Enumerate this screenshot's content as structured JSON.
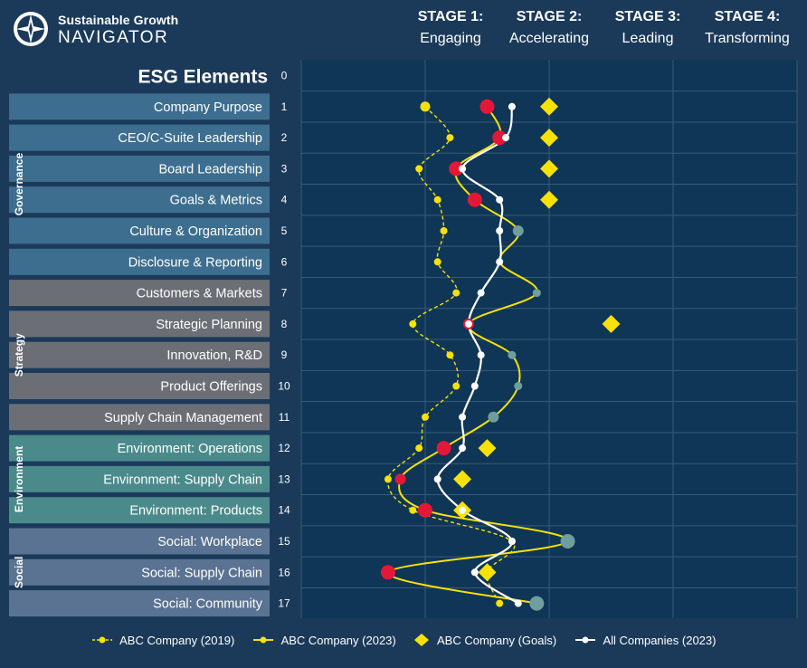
{
  "brand": {
    "top": "Sustainable Growth",
    "bottom": "NAVIGATOR"
  },
  "stages": [
    {
      "title": "STAGE 1:",
      "name": "Engaging"
    },
    {
      "title": "STAGE 2:",
      "name": "Accelerating"
    },
    {
      "title": "STAGE 3:",
      "name": "Leading"
    },
    {
      "title": "STAGE 4:",
      "name": "Transforming"
    }
  ],
  "colors": {
    "background": "#1b3a5a",
    "plot": "#0f3656",
    "grid": "#3a5a78",
    "governance": "#3d6e8f",
    "strategy": "#6b6f75",
    "environment": "#4b8a8b",
    "social": "#5b7392",
    "abc2019": "#f7e107",
    "abc2023": "#f7e107",
    "abc2023_marker": "#e31837",
    "goals": "#f7e107",
    "all": "#ffffff",
    "all_marker": "#6e9e9d"
  },
  "chart_data": {
    "type": "line",
    "title": "ESG Elements",
    "xlabel": "",
    "ylabel": "",
    "xlim": [
      0.5,
      4.5
    ],
    "ylim": [
      0,
      17
    ],
    "categories": [
      "Company Purpose",
      "CEO/C-Suite Leadership",
      "Board Leadership",
      "Goals & Metrics",
      "Culture & Organization",
      "Disclosure & Reporting",
      "Customers & Markets",
      "Strategic Planning",
      "Innovation, R&D",
      "Product Offerings",
      "Supply Chain Management",
      "Environment: Operations",
      "Environment: Supply Chain",
      "Environment: Products",
      "Social: Workplace",
      "Social: Supply Chain",
      "Social: Community"
    ],
    "row_numbers": [
      "0",
      "1",
      "2",
      "3",
      "4",
      "5",
      "6",
      "7",
      "8",
      "9",
      "10",
      "11",
      "12",
      "13",
      "14",
      "15",
      "16",
      "17"
    ],
    "groups": [
      {
        "name": "Governance",
        "from": 1,
        "to": 6
      },
      {
        "name": "Strategy",
        "from": 7,
        "to": 11
      },
      {
        "name": "Environment",
        "from": 12,
        "to": 14
      },
      {
        "name": "Social",
        "from": 15,
        "to": 17
      }
    ],
    "series": [
      {
        "name": "ABC Company (2019)",
        "style": "dashed-small-dot",
        "values": [
          1.5,
          1.7,
          1.45,
          1.6,
          1.65,
          1.6,
          1.75,
          1.4,
          1.7,
          1.75,
          1.5,
          1.45,
          1.2,
          1.4,
          2.2,
          2.0,
          2.1
        ]
      },
      {
        "name": "ABC Company (2023)",
        "style": "solid-red-dot",
        "values": [
          2.0,
          2.1,
          1.75,
          1.9,
          2.25,
          2.1,
          2.4,
          1.85,
          2.2,
          2.25,
          2.05,
          1.65,
          1.3,
          1.5,
          2.65,
          1.2,
          2.4
        ]
      },
      {
        "name": "ABC Company (Goals)",
        "style": "diamond",
        "values": [
          2.5,
          2.5,
          2.5,
          2.5,
          null,
          null,
          null,
          3.0,
          null,
          null,
          null,
          2.0,
          1.8,
          1.8,
          null,
          2.0,
          null
        ]
      },
      {
        "name": "All Companies (2023)",
        "style": "solid-white-dot",
        "values": [
          2.2,
          2.15,
          1.8,
          2.1,
          2.1,
          2.1,
          1.95,
          1.85,
          1.95,
          1.9,
          1.8,
          1.8,
          1.6,
          1.8,
          2.2,
          1.9,
          2.25
        ]
      }
    ]
  }
}
